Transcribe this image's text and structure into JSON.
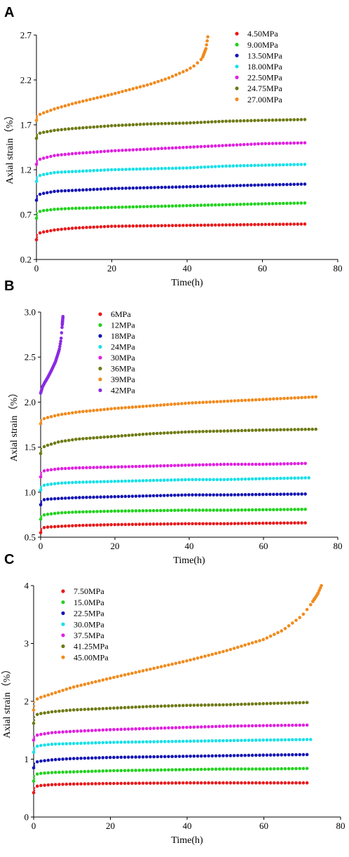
{
  "chart_data": [
    {
      "panel": "A",
      "type": "scatter",
      "xlabel": "Time(h)",
      "ylabel": "Axial strain（%）",
      "xlim": [
        0,
        80
      ],
      "ylim": [
        0.2,
        2.7
      ],
      "xticks": [
        "0",
        "20",
        "40",
        "60",
        "80"
      ],
      "yticks": [
        "0.2",
        "0.7",
        "1.2",
        "1.7",
        "2.2",
        "2.7"
      ],
      "grid": false,
      "legend_position": "top-right",
      "series": [
        {
          "name": "4.50MPa",
          "color": "#e8191b",
          "x": [
            0,
            1,
            5,
            10,
            20,
            30,
            40,
            50,
            60,
            72
          ],
          "y": [
            0.42,
            0.5,
            0.53,
            0.55,
            0.57,
            0.575,
            0.58,
            0.585,
            0.59,
            0.595
          ]
        },
        {
          "name": "9.00MPa",
          "color": "#22d21e",
          "x": [
            0,
            1,
            5,
            10,
            20,
            30,
            40,
            50,
            60,
            72
          ],
          "y": [
            0.66,
            0.74,
            0.76,
            0.77,
            0.78,
            0.79,
            0.8,
            0.81,
            0.82,
            0.83
          ]
        },
        {
          "name": "13.50MPa",
          "color": "#1414b4",
          "x": [
            0,
            1,
            5,
            10,
            20,
            30,
            40,
            50,
            60,
            72
          ],
          "y": [
            0.86,
            0.93,
            0.96,
            0.97,
            0.99,
            1.0,
            1.01,
            1.02,
            1.03,
            1.04
          ]
        },
        {
          "name": "18.00MPa",
          "color": "#18e0e8",
          "x": [
            0,
            1,
            5,
            10,
            20,
            30,
            40,
            50,
            60,
            72
          ],
          "y": [
            1.07,
            1.14,
            1.17,
            1.18,
            1.2,
            1.21,
            1.22,
            1.24,
            1.25,
            1.26
          ]
        },
        {
          "name": "22.50MPa",
          "color": "#e020e0",
          "x": [
            0,
            1,
            5,
            10,
            20,
            30,
            40,
            50,
            60,
            72
          ],
          "y": [
            1.26,
            1.32,
            1.36,
            1.38,
            1.41,
            1.43,
            1.45,
            1.47,
            1.49,
            1.5
          ]
        },
        {
          "name": "24.75MPa",
          "color": "#6e7a14",
          "x": [
            0,
            1,
            5,
            10,
            20,
            30,
            40,
            50,
            60,
            72
          ],
          "y": [
            1.55,
            1.61,
            1.64,
            1.66,
            1.69,
            1.71,
            1.72,
            1.74,
            1.75,
            1.76
          ]
        },
        {
          "name": "27.00MPa",
          "color": "#f28a1c",
          "x": [
            0,
            1,
            5,
            10,
            20,
            30,
            35,
            40,
            42,
            44,
            45,
            45.5
          ],
          "y": [
            1.75,
            1.82,
            1.88,
            1.94,
            2.04,
            2.15,
            2.22,
            2.31,
            2.36,
            2.44,
            2.55,
            2.68
          ]
        }
      ]
    },
    {
      "panel": "B",
      "type": "scatter",
      "xlabel": "Time(h)",
      "ylabel": "Axial strain（%）",
      "xlim": [
        0,
        80
      ],
      "ylim": [
        0.5,
        3.0
      ],
      "xticks": [
        "0",
        "20",
        "40",
        "60",
        "80"
      ],
      "yticks": [
        "0.5",
        "1.0",
        "1.5",
        "2.0",
        "2.5",
        "3.0"
      ],
      "grid": false,
      "legend_position": "top-left",
      "series": [
        {
          "name": "6MPa",
          "color": "#e8191b",
          "x": [
            0,
            1,
            5,
            10,
            20,
            30,
            40,
            50,
            60,
            72
          ],
          "y": [
            0.55,
            0.61,
            0.62,
            0.63,
            0.64,
            0.645,
            0.65,
            0.65,
            0.655,
            0.66
          ]
        },
        {
          "name": "12MPa",
          "color": "#22d21e",
          "x": [
            0,
            1,
            5,
            10,
            20,
            30,
            40,
            50,
            60,
            72
          ],
          "y": [
            0.7,
            0.75,
            0.77,
            0.78,
            0.79,
            0.795,
            0.8,
            0.8,
            0.805,
            0.81
          ]
        },
        {
          "name": "18MPa",
          "color": "#1414b4",
          "x": [
            0,
            1,
            5,
            10,
            20,
            30,
            40,
            50,
            60,
            72
          ],
          "y": [
            0.86,
            0.92,
            0.93,
            0.94,
            0.95,
            0.96,
            0.97,
            0.97,
            0.975,
            0.98
          ]
        },
        {
          "name": "24MPa",
          "color": "#18e0e8",
          "x": [
            0,
            1,
            5,
            10,
            20,
            30,
            40,
            50,
            60,
            73
          ],
          "y": [
            1.02,
            1.08,
            1.1,
            1.11,
            1.12,
            1.13,
            1.14,
            1.14,
            1.15,
            1.16
          ]
        },
        {
          "name": "30MPa",
          "color": "#e020e0",
          "x": [
            0,
            1,
            5,
            10,
            20,
            30,
            40,
            50,
            60,
            72
          ],
          "y": [
            1.17,
            1.24,
            1.26,
            1.27,
            1.28,
            1.29,
            1.3,
            1.31,
            1.31,
            1.32
          ]
        },
        {
          "name": "36MPa",
          "color": "#6e7a14",
          "x": [
            0,
            1,
            5,
            10,
            20,
            30,
            40,
            50,
            60,
            75
          ],
          "y": [
            1.43,
            1.51,
            1.56,
            1.59,
            1.62,
            1.65,
            1.67,
            1.68,
            1.69,
            1.7
          ]
        },
        {
          "name": "39MPa",
          "color": "#f28a1c",
          "x": [
            0,
            1,
            5,
            10,
            20,
            30,
            40,
            50,
            60,
            75
          ],
          "y": [
            1.76,
            1.82,
            1.86,
            1.89,
            1.93,
            1.96,
            1.99,
            2.01,
            2.03,
            2.06
          ]
        },
        {
          "name": "42MPa",
          "color": "#8a2be2",
          "x": [
            0,
            0.5,
            1,
            2,
            3,
            4,
            5,
            5.5,
            6
          ],
          "y": [
            2.1,
            2.17,
            2.21,
            2.28,
            2.36,
            2.45,
            2.58,
            2.7,
            2.95
          ]
        }
      ]
    },
    {
      "panel": "C",
      "type": "scatter",
      "xlabel": "Time(h)",
      "ylabel": "Axial strain（%）",
      "xlim": [
        0,
        80
      ],
      "ylim": [
        0,
        4
      ],
      "xticks": [
        "0",
        "20",
        "40",
        "60",
        "80"
      ],
      "yticks": [
        "0",
        "1",
        "2",
        "3",
        "4"
      ],
      "grid": false,
      "legend_position": "top-left",
      "series": [
        {
          "name": "7.50MPa",
          "color": "#e8191b",
          "x": [
            0,
            1,
            5,
            10,
            20,
            30,
            40,
            50,
            60,
            72
          ],
          "y": [
            0.42,
            0.54,
            0.56,
            0.57,
            0.58,
            0.585,
            0.59,
            0.59,
            0.59,
            0.59
          ]
        },
        {
          "name": "15.0MPa",
          "color": "#22d21e",
          "x": [
            0,
            1,
            5,
            10,
            20,
            30,
            40,
            50,
            60,
            72
          ],
          "y": [
            0.62,
            0.75,
            0.77,
            0.78,
            0.8,
            0.81,
            0.82,
            0.83,
            0.83,
            0.84
          ]
        },
        {
          "name": "22.5MPa",
          "color": "#1414b4",
          "x": [
            0,
            1,
            5,
            10,
            20,
            30,
            40,
            50,
            60,
            72
          ],
          "y": [
            0.85,
            0.96,
            0.99,
            1.01,
            1.03,
            1.04,
            1.05,
            1.06,
            1.07,
            1.08
          ]
        },
        {
          "name": "30.0MPa",
          "color": "#18e0e8",
          "x": [
            0,
            1,
            5,
            10,
            20,
            30,
            40,
            50,
            60,
            73
          ],
          "y": [
            1.12,
            1.23,
            1.26,
            1.27,
            1.29,
            1.3,
            1.31,
            1.32,
            1.33,
            1.34
          ]
        },
        {
          "name": "37.5MPa",
          "color": "#e020e0",
          "x": [
            0,
            1,
            5,
            10,
            20,
            30,
            40,
            50,
            60,
            72
          ],
          "y": [
            1.33,
            1.42,
            1.46,
            1.48,
            1.51,
            1.53,
            1.55,
            1.57,
            1.58,
            1.59
          ]
        },
        {
          "name": "41.25MPa",
          "color": "#6e7a14",
          "x": [
            0,
            1,
            5,
            10,
            20,
            30,
            40,
            50,
            60,
            72
          ],
          "y": [
            1.62,
            1.78,
            1.82,
            1.85,
            1.88,
            1.91,
            1.93,
            1.94,
            1.96,
            1.98
          ]
        },
        {
          "name": "45.00MPa",
          "color": "#f28a1c",
          "x": [
            0,
            1,
            10,
            20,
            30,
            40,
            50,
            60,
            65,
            70,
            72,
            74,
            75
          ],
          "y": [
            1.85,
            2.05,
            2.24,
            2.4,
            2.55,
            2.7,
            2.87,
            3.07,
            3.23,
            3.48,
            3.65,
            3.85,
            4.0
          ]
        }
      ]
    }
  ]
}
